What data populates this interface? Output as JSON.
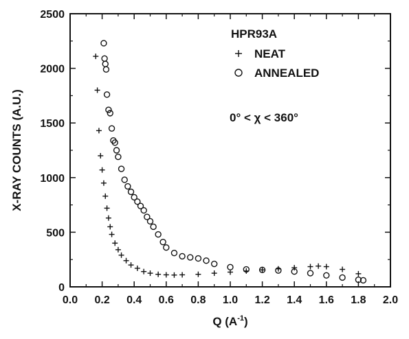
{
  "chart_data": {
    "type": "scatter",
    "xlabel": "Q (A",
    "xlabel_sup": "-1",
    "xlabel_close": ")",
    "ylabel": "X-RAY COUNTS (A.U.)",
    "xlim": [
      0.0,
      2.0
    ],
    "ylim": [
      0,
      2500
    ],
    "xticks": [
      0.0,
      0.2,
      0.4,
      0.6,
      0.8,
      1.0,
      1.2,
      1.4,
      1.6,
      1.8,
      2.0
    ],
    "xtick_labels": [
      "0.0",
      "0.2",
      "0.4",
      "0.6",
      "0.8",
      "1.0",
      "1.2",
      "1.4",
      "1.6",
      "1.8",
      "2.0"
    ],
    "yticks": [
      0,
      500,
      1000,
      1500,
      2000,
      2500
    ],
    "ytick_labels": [
      "0",
      "500",
      "1000",
      "1500",
      "2000",
      "2500"
    ],
    "grid": false,
    "legend_title": "HPR93A",
    "legend_placement": "top-right",
    "annotation": "0° < χ < 360°",
    "colors": {
      "marker": "#111111",
      "axis": "#111111"
    },
    "series": [
      {
        "name": "NEAT",
        "marker": "plus",
        "x": [
          0.16,
          0.17,
          0.18,
          0.19,
          0.2,
          0.21,
          0.22,
          0.23,
          0.24,
          0.25,
          0.26,
          0.28,
          0.3,
          0.32,
          0.35,
          0.38,
          0.42,
          0.46,
          0.5,
          0.55,
          0.6,
          0.65,
          0.7,
          0.8,
          0.9,
          1.0,
          1.1,
          1.2,
          1.3,
          1.4,
          1.5,
          1.55,
          1.6,
          1.7,
          1.8
        ],
        "y": [
          2110,
          1800,
          1430,
          1200,
          1070,
          950,
          830,
          720,
          630,
          550,
          480,
          400,
          340,
          290,
          240,
          200,
          170,
          140,
          125,
          115,
          110,
          108,
          110,
          115,
          125,
          135,
          145,
          155,
          165,
          175,
          185,
          190,
          185,
          160,
          120
        ]
      },
      {
        "name": "ANNEALED",
        "marker": "circle",
        "x": [
          0.21,
          0.215,
          0.22,
          0.225,
          0.23,
          0.24,
          0.25,
          0.26,
          0.27,
          0.28,
          0.29,
          0.3,
          0.32,
          0.34,
          0.36,
          0.38,
          0.4,
          0.42,
          0.44,
          0.46,
          0.48,
          0.5,
          0.52,
          0.55,
          0.58,
          0.6,
          0.65,
          0.7,
          0.75,
          0.8,
          0.85,
          0.9,
          1.0,
          1.1,
          1.2,
          1.3,
          1.4,
          1.5,
          1.6,
          1.7,
          1.8,
          1.83
        ],
        "y": [
          2230,
          2090,
          2040,
          1990,
          1760,
          1620,
          1590,
          1450,
          1340,
          1320,
          1250,
          1190,
          1080,
          980,
          920,
          870,
          820,
          780,
          740,
          700,
          640,
          600,
          550,
          480,
          410,
          360,
          310,
          280,
          270,
          260,
          240,
          210,
          180,
          160,
          155,
          150,
          140,
          125,
          105,
          85,
          65,
          60
        ]
      }
    ]
  }
}
